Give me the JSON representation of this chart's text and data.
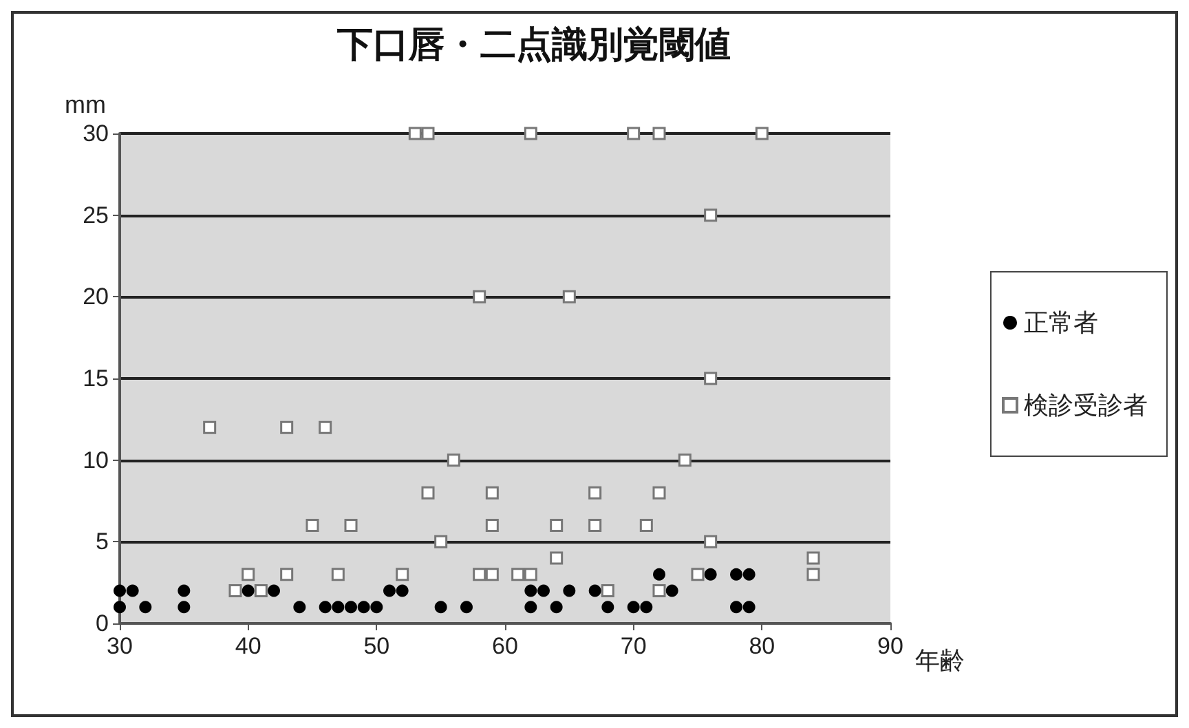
{
  "chart_data": {
    "type": "scatter",
    "title": "下口唇・二点識別覚閾値",
    "xlabel": "年齢",
    "ylabel": "mm",
    "xlim": [
      30,
      90
    ],
    "ylim": [
      0,
      30
    ],
    "xticks": [
      30,
      40,
      50,
      60,
      70,
      80,
      90
    ],
    "yticks": [
      0,
      5,
      10,
      15,
      20,
      25,
      30
    ],
    "grid": "y",
    "legend": "right",
    "series": [
      {
        "name": "正常者",
        "color": "#000000",
        "marker": "circle",
        "x": [
          30,
          31,
          35,
          40,
          42,
          51,
          52,
          30,
          32,
          35,
          44,
          46,
          47,
          48,
          49,
          50,
          55,
          57,
          72,
          76,
          78,
          79,
          62,
          63,
          65,
          67,
          73,
          62,
          64,
          68,
          70,
          71,
          78,
          79
        ],
        "values": [
          2,
          2,
          2,
          2,
          2,
          2,
          2,
          1,
          1,
          1,
          1,
          1,
          1,
          1,
          1,
          1,
          1,
          1,
          3,
          3,
          3,
          3,
          2,
          2,
          2,
          2,
          2,
          1,
          1,
          1,
          1,
          1,
          1,
          1
        ]
      },
      {
        "name": "検診受診者",
        "color": "#ffffff",
        "marker": "square",
        "x": [
          39,
          41,
          40,
          43,
          47,
          52,
          58,
          59,
          45,
          48,
          59,
          55,
          64,
          67,
          71,
          76,
          64,
          84,
          61,
          62,
          75,
          84,
          68,
          72,
          53,
          54,
          62,
          70,
          72,
          80,
          76,
          58,
          65,
          76,
          37,
          43,
          46,
          56,
          74,
          54,
          59,
          67,
          72
        ],
        "values": [
          2,
          2,
          3,
          3,
          3,
          3,
          3,
          3,
          6,
          6,
          6,
          5,
          6,
          6,
          6,
          5,
          4,
          4,
          3,
          3,
          3,
          3,
          2,
          2,
          30,
          30,
          30,
          30,
          30,
          30,
          25,
          20,
          20,
          15,
          12,
          12,
          12,
          10,
          10,
          8,
          8,
          8,
          8
        ]
      }
    ]
  }
}
